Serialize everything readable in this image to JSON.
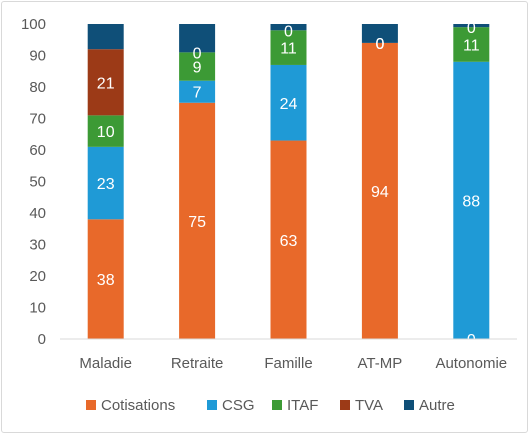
{
  "chart_data": {
    "type": "bar",
    "stacked": true,
    "title": "",
    "xlabel": "",
    "ylabel": "",
    "ylim": [
      0,
      100
    ],
    "yticks": [
      0,
      10,
      20,
      30,
      40,
      50,
      60,
      70,
      80,
      90,
      100
    ],
    "grid": false,
    "legend_position": "bottom",
    "categories": [
      "Maladie",
      "Retraite",
      "Famille",
      "AT-MP",
      "Autonomie"
    ],
    "series": [
      {
        "name": "Cotisations",
        "color": "#e8692a",
        "values": [
          38,
          75,
          63,
          94,
          0
        ]
      },
      {
        "name": "CSG",
        "color": "#1f9ad6",
        "values": [
          23,
          7,
          24,
          0,
          88
        ]
      },
      {
        "name": "ITAF",
        "color": "#3c9a35",
        "values": [
          10,
          9,
          11,
          0,
          11
        ]
      },
      {
        "name": "TVA",
        "color": "#9c3a17",
        "values": [
          21,
          0,
          0,
          0,
          0
        ]
      },
      {
        "name": "Autre",
        "color": "#0f4f78",
        "values": [
          8,
          9,
          2,
          6,
          1
        ]
      }
    ],
    "data_labels": [
      {
        "category": "Maladie",
        "series": "Cotisations",
        "text": "38"
      },
      {
        "category": "Maladie",
        "series": "CSG",
        "text": "23"
      },
      {
        "category": "Maladie",
        "series": "ITAF",
        "text": "10"
      },
      {
        "category": "Maladie",
        "series": "TVA",
        "text": "21"
      },
      {
        "category": "Retraite",
        "series": "Cotisations",
        "text": "75"
      },
      {
        "category": "Retraite",
        "series": "CSG",
        "text": "7"
      },
      {
        "category": "Retraite",
        "series": "ITAF",
        "text": "9"
      },
      {
        "category": "Retraite",
        "series": "TVA",
        "text": "0"
      },
      {
        "category": "Famille",
        "series": "Cotisations",
        "text": "63"
      },
      {
        "category": "Famille",
        "series": "CSG",
        "text": "24"
      },
      {
        "category": "Famille",
        "series": "ITAF",
        "text": "11"
      },
      {
        "category": "Famille",
        "series": "TVA",
        "text": "0"
      },
      {
        "category": "AT-MP",
        "series": "Cotisations",
        "text": "94"
      },
      {
        "category": "AT-MP",
        "series": "ITAF",
        "text": "0"
      },
      {
        "category": "AT-MP",
        "series": "TVA",
        "text": "0"
      },
      {
        "category": "Autonomie",
        "series": "Cotisations",
        "text": "0"
      },
      {
        "category": "Autonomie",
        "series": "CSG",
        "text": "88"
      },
      {
        "category": "Autonomie",
        "series": "ITAF",
        "text": "11"
      },
      {
        "category": "Autonomie",
        "series": "TVA",
        "text": "0"
      }
    ]
  }
}
